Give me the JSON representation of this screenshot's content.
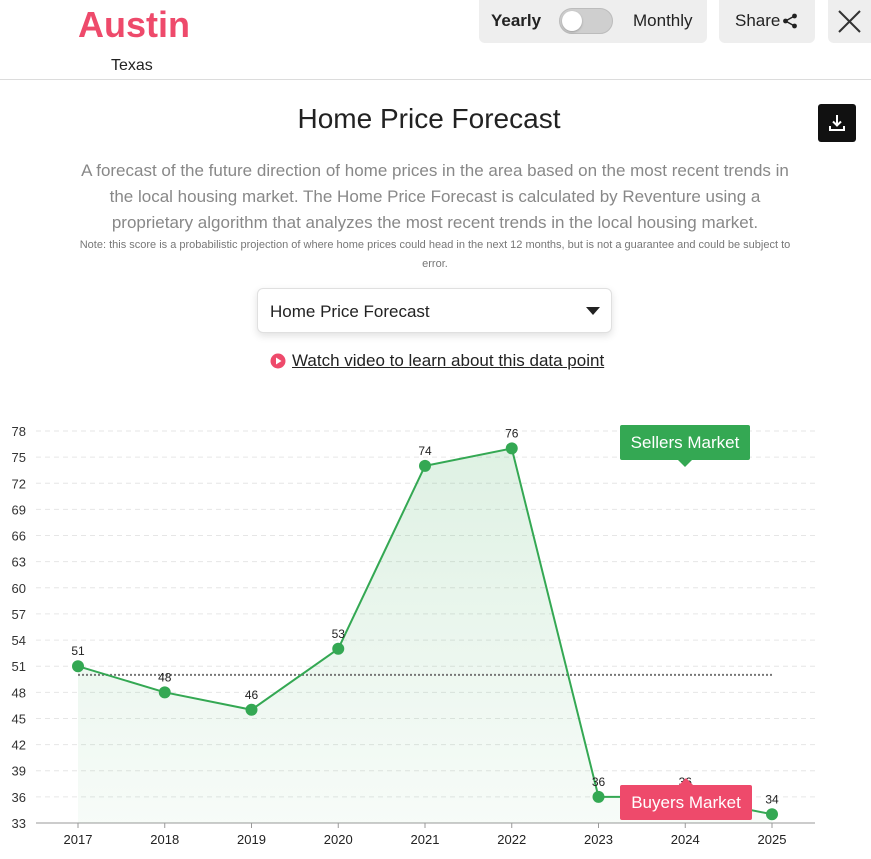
{
  "header": {
    "city": "Austin",
    "state": "Texas",
    "toggle": {
      "left_label": "Yearly",
      "right_label": "Monthly",
      "selected": "Yearly"
    },
    "share_label": "Share",
    "icons": {
      "share": "share-icon",
      "close": "close-icon",
      "download": "download-icon"
    }
  },
  "content": {
    "title": "Home Price Forecast",
    "description": "A forecast of the future direction of home prices in the area based on the most recent trends in the local housing market. The Home Price Forecast is calculated by Reventure using a proprietary algorithm that analyzes the most recent trends in the local housing market.",
    "note": "Note: this score is a probabilistic projection of where home prices could head in the next 12 months, but is not a guarantee and could be subject to error.",
    "dropdown": {
      "selected": "Home Price Forecast"
    },
    "video_link": "Watch video to learn about this data point"
  },
  "colors": {
    "accent_pink": "#ee4a6b",
    "line_green": "#34a853",
    "sellers_green": "#34a853",
    "buyers_red": "#ee4a6b"
  },
  "chart_data": {
    "type": "line",
    "x": [
      "2017",
      "2018",
      "2019",
      "2020",
      "2021",
      "2022",
      "2023",
      "2024",
      "2025"
    ],
    "values": [
      51,
      48,
      46,
      53,
      74,
      76,
      36,
      36,
      34
    ],
    "data_labels": [
      "51",
      "48",
      "46",
      "53",
      "74",
      "76",
      "36",
      "36",
      "34"
    ],
    "y_ticks": [
      33,
      36,
      39,
      42,
      45,
      48,
      51,
      54,
      57,
      60,
      63,
      66,
      69,
      72,
      75,
      78
    ],
    "ylim": [
      33,
      78
    ],
    "threshold": 50,
    "grid": true,
    "area_fill": true,
    "annotations": {
      "sellers": "Sellers Market",
      "buyers": "Buyers Market"
    }
  }
}
